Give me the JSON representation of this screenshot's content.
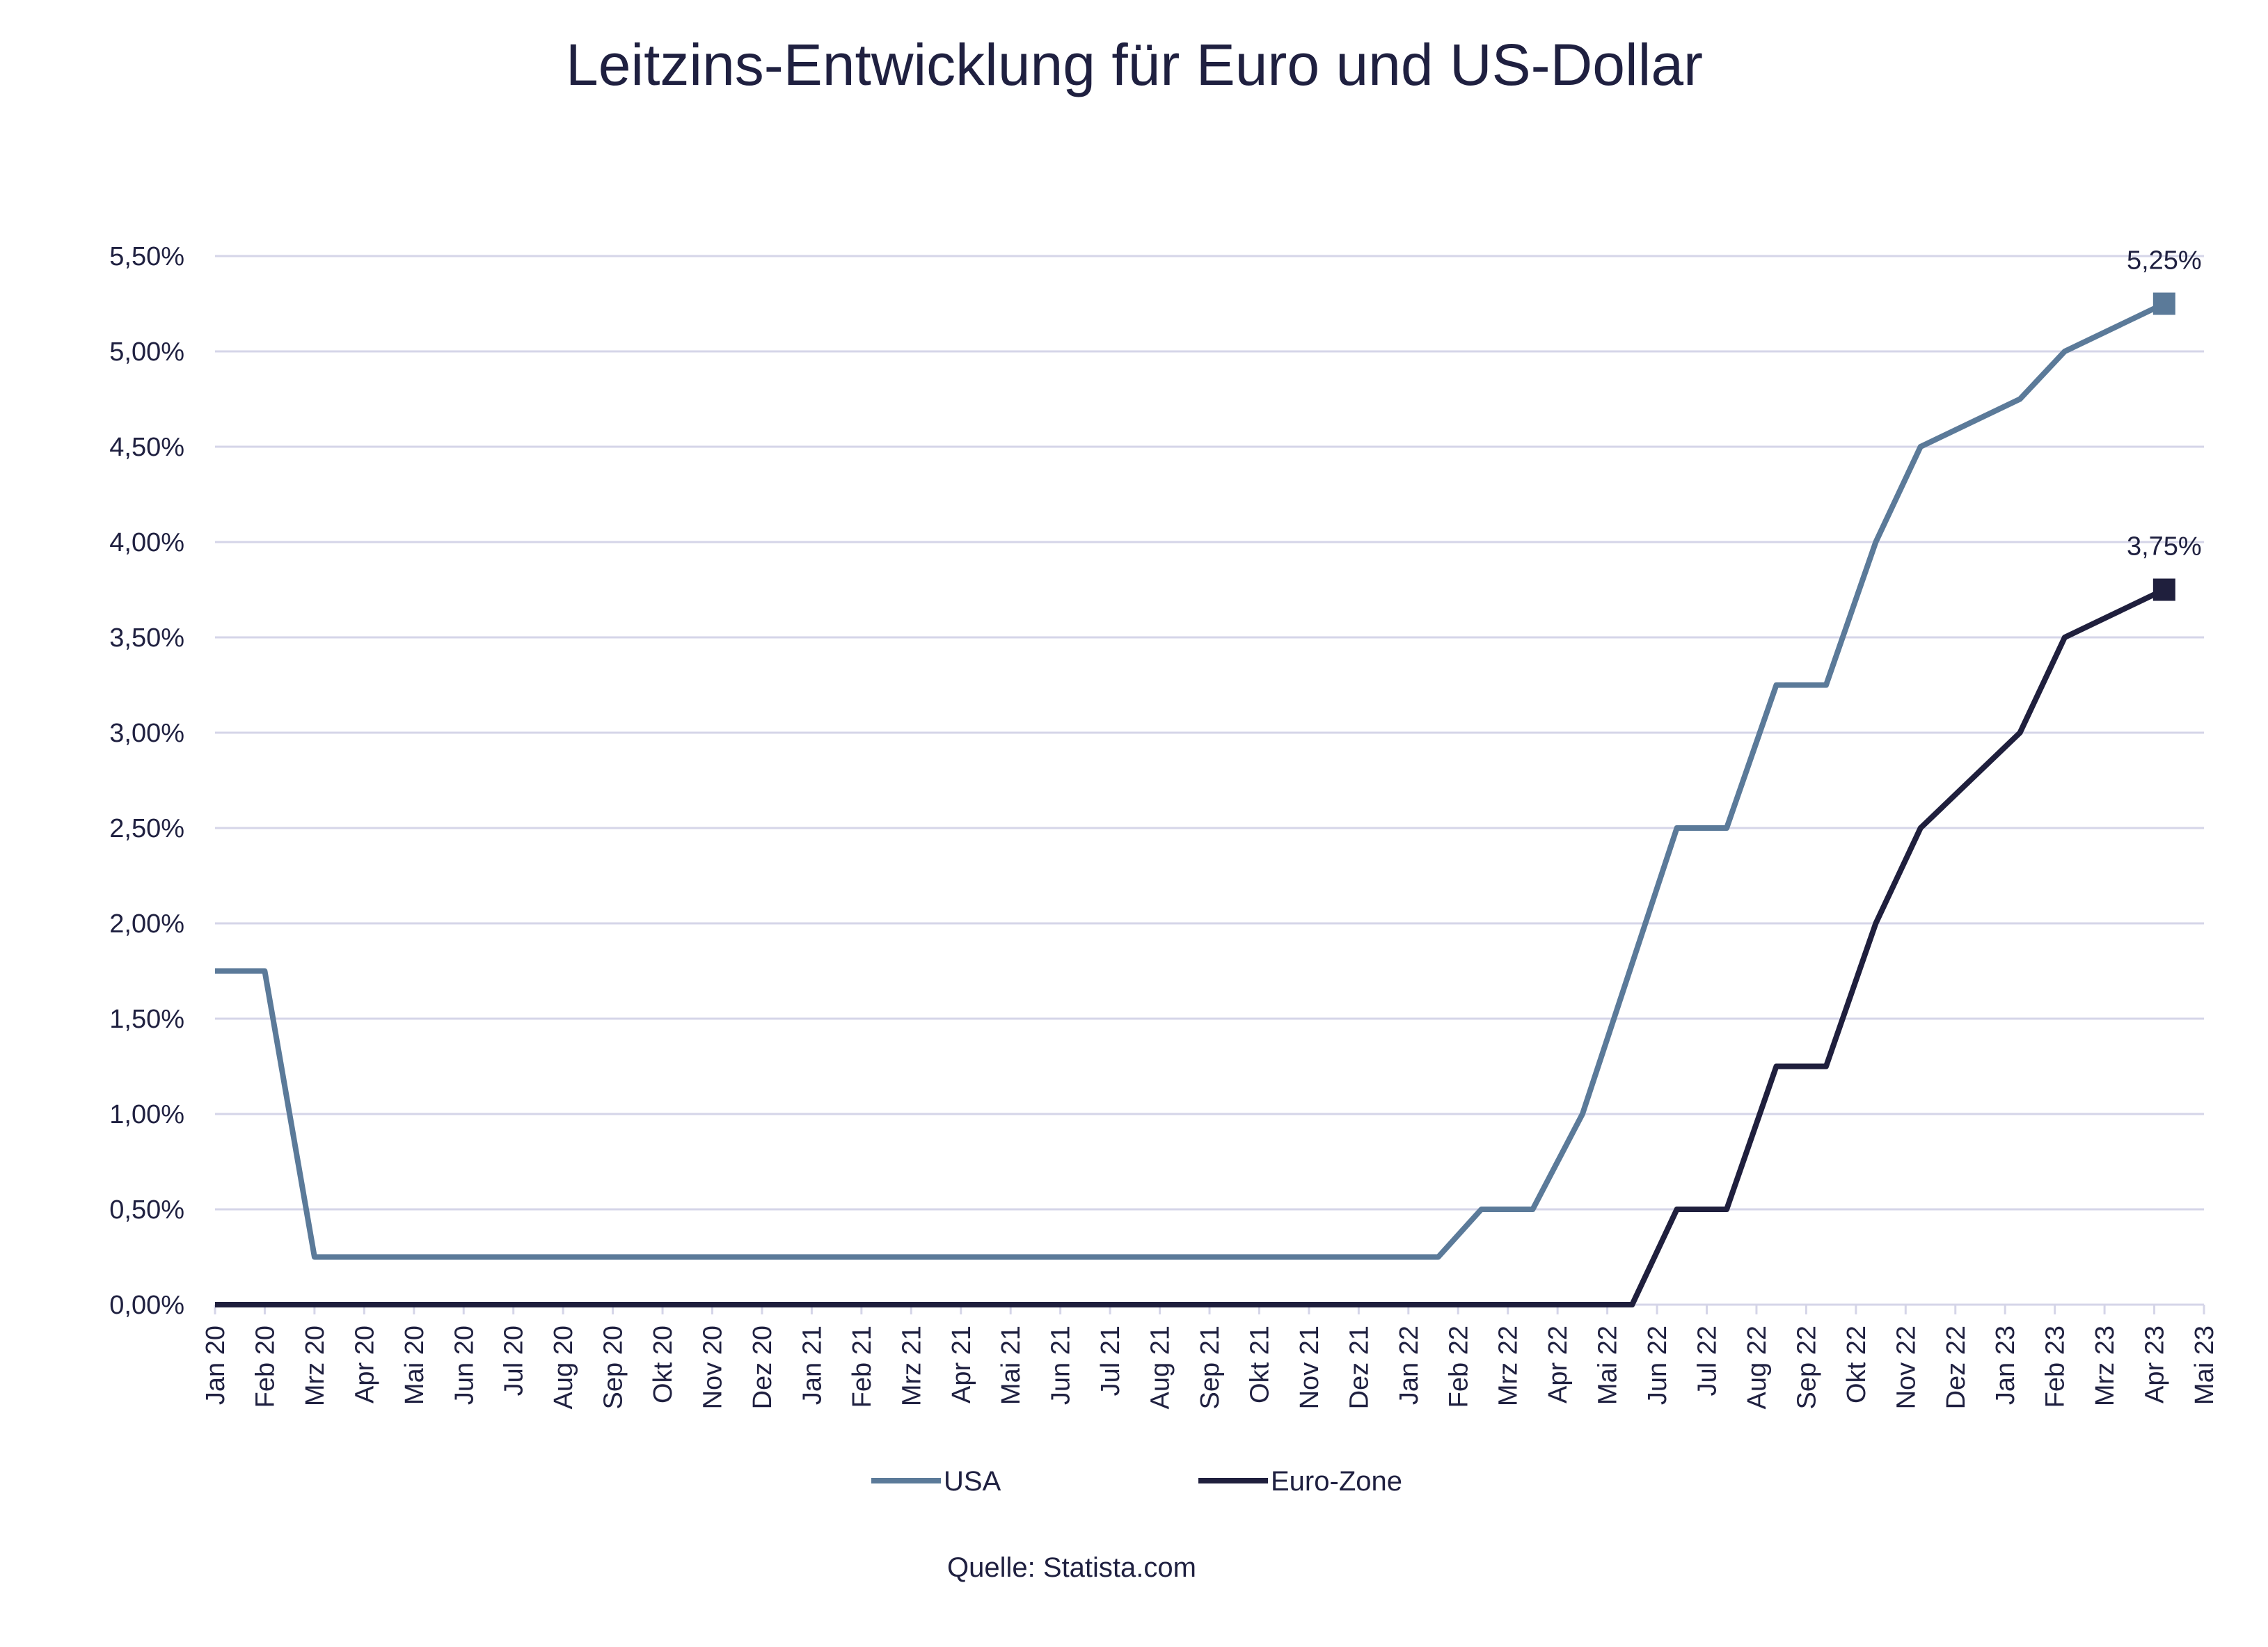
{
  "chart_data": {
    "type": "line",
    "title": "Leitzins-Entwicklung für Euro und US-Dollar",
    "source": "Quelle: Statista.com",
    "xlabel": "",
    "ylabel": "",
    "ylim": [
      0,
      5.5
    ],
    "yticks": [
      "0,00%",
      "0,50%",
      "1,00%",
      "1,50%",
      "2,00%",
      "2,50%",
      "3,00%",
      "3,50%",
      "4,00%",
      "4,50%",
      "5,00%",
      "5,50%"
    ],
    "xticks": [
      "Jan 20",
      "Feb 20",
      "Mrz 20",
      "Apr 20",
      "Mai 20",
      "Jun 20",
      "Jul 20",
      "Aug 20",
      "Sep 20",
      "Okt 20",
      "Nov 20",
      "Dez 20",
      "Jan 21",
      "Feb 21",
      "Mrz 21",
      "Apr 21",
      "Mai 21",
      "Jun 21",
      "Jul 21",
      "Aug 21",
      "Sep 21",
      "Okt 21",
      "Nov 21",
      "Dez 21",
      "Jan 22",
      "Feb 22",
      "Mrz 22",
      "Apr 22",
      "Mai 22",
      "Jun 22",
      "Jul 22",
      "Aug 22",
      "Sep 22",
      "Okt 22",
      "Nov 22",
      "Dez 22",
      "Jan 23",
      "Feb 23",
      "Mrz 23",
      "Apr 23",
      "Mai 23"
    ],
    "xlim": [
      "2020-01-01",
      "2023-05-01"
    ],
    "grid": true,
    "legend": "bottom",
    "series": [
      {
        "name": "USA",
        "color": "#5b7a99",
        "end_label": "5,25%",
        "points": [
          [
            "2020-01-01",
            1.75
          ],
          [
            "2020-02-01",
            1.75
          ],
          [
            "2020-03-01",
            0.25
          ],
          [
            "2022-01-19",
            0.25
          ],
          [
            "2022-02-15",
            0.5
          ],
          [
            "2022-03-16",
            0.5
          ],
          [
            "2022-04-16",
            1.0
          ],
          [
            "2022-06-13",
            2.5
          ],
          [
            "2022-07-13",
            2.5
          ],
          [
            "2022-08-13",
            3.25
          ],
          [
            "2022-09-13",
            3.25
          ],
          [
            "2022-10-13",
            4.0
          ],
          [
            "2022-11-10",
            4.5
          ],
          [
            "2023-01-10",
            4.75
          ],
          [
            "2023-02-07",
            5.0
          ],
          [
            "2023-04-07",
            5.25
          ]
        ]
      },
      {
        "name": "Euro-Zone",
        "color": "#1f1f3d",
        "end_label": "3,75%",
        "points": [
          [
            "2020-01-01",
            0
          ],
          [
            "2022-05-16",
            0
          ],
          [
            "2022-06-13",
            0.5
          ],
          [
            "2022-07-13",
            0.5
          ],
          [
            "2022-08-13",
            1.25
          ],
          [
            "2022-09-13",
            1.25
          ],
          [
            "2022-10-13",
            2.0
          ],
          [
            "2022-11-10",
            2.5
          ],
          [
            "2023-01-10",
            3.0
          ],
          [
            "2023-02-07",
            3.5
          ],
          [
            "2023-04-07",
            3.75
          ]
        ]
      }
    ]
  }
}
